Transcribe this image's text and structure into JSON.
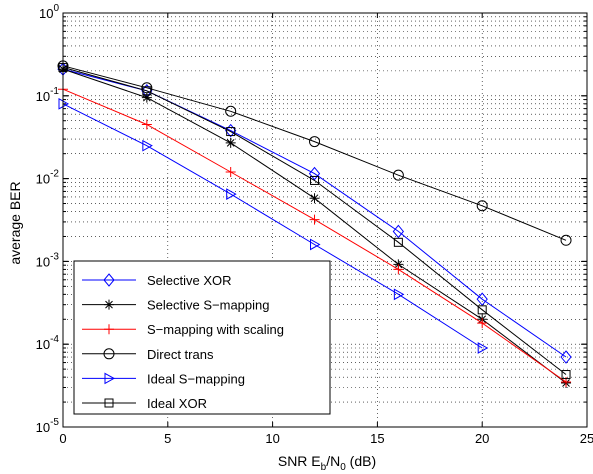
{
  "chart_data": {
    "type": "line",
    "title": "",
    "xlabel": "SNR E_b/N_0 (dB)",
    "xlabel_parts": {
      "main": "SNR E",
      "sub1": "b",
      "slash": "/N",
      "sub2": "0",
      "unit": " (dB)"
    },
    "ylabel": "average BER",
    "xlim": [
      0,
      25
    ],
    "ylim": [
      1e-05,
      1
    ],
    "yscale": "log",
    "grid": true,
    "legend_position": "bottom-left",
    "x_ticks": [
      0,
      5,
      10,
      15,
      20,
      25
    ],
    "x_tick_labels": [
      "0",
      "5",
      "10",
      "15",
      "20",
      "25"
    ],
    "y_ticks": [
      {
        "base": "10",
        "exp": "-5",
        "value": 1e-05
      },
      {
        "base": "10",
        "exp": "-4",
        "value": 0.0001
      },
      {
        "base": "10",
        "exp": "-3",
        "value": 0.001
      },
      {
        "base": "10",
        "exp": "-2",
        "value": 0.01
      },
      {
        "base": "10",
        "exp": "-1",
        "value": 0.1
      },
      {
        "base": "10",
        "exp": "0",
        "value": 1
      }
    ],
    "series": [
      {
        "name": "Selective XOR",
        "color": "#0000ff",
        "marker": "diamond",
        "x": [
          0,
          4,
          8,
          12,
          16,
          20,
          24
        ],
        "y": [
          0.21,
          0.115,
          0.038,
          0.0115,
          0.0023,
          0.00035,
          7e-05
        ]
      },
      {
        "name": "Selective S−mapping",
        "color": "#000000",
        "marker": "star",
        "x": [
          0,
          4,
          8,
          12,
          16,
          20,
          24
        ],
        "y": [
          0.21,
          0.095,
          0.027,
          0.0058,
          0.00092,
          0.0002,
          3.4e-05
        ]
      },
      {
        "name": "S−mapping with scaling",
        "color": "#ff0000",
        "marker": "plus",
        "x": [
          0,
          4,
          8,
          12,
          16,
          20,
          24
        ],
        "y": [
          0.12,
          0.045,
          0.012,
          0.0032,
          0.0008,
          0.00018,
          3.5e-05
        ]
      },
      {
        "name": "Direct trans",
        "color": "#000000",
        "marker": "circle",
        "x": [
          0,
          4,
          8,
          12,
          16,
          20,
          24
        ],
        "y": [
          0.23,
          0.125,
          0.065,
          0.028,
          0.011,
          0.0047,
          0.0018
        ]
      },
      {
        "name": "Ideal S−mapping",
        "color": "#0000ff",
        "marker": "triangle-right",
        "x": [
          0,
          4,
          8,
          12,
          16,
          20
        ],
        "y": [
          0.08,
          0.025,
          0.0065,
          0.0016,
          0.0004,
          9e-05
        ]
      },
      {
        "name": "Ideal XOR",
        "color": "#000000",
        "marker": "square",
        "x": [
          0,
          4,
          8,
          12,
          16,
          20,
          24
        ],
        "y": [
          0.22,
          0.115,
          0.037,
          0.0095,
          0.0017,
          0.00026,
          4.3e-05
        ]
      }
    ]
  }
}
